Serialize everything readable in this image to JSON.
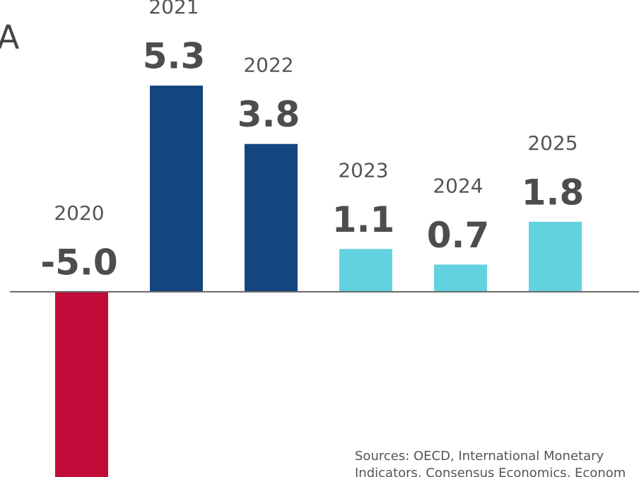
{
  "chart_data": {
    "type": "bar",
    "title": "A",
    "categories": [
      "2020",
      "2021",
      "2022",
      "2023",
      "2024",
      "2025"
    ],
    "values": [
      -5.0,
      5.3,
      3.8,
      1.1,
      0.7,
      1.8
    ],
    "value_labels": [
      "-5.0",
      "5.3",
      "3.8",
      "1.1",
      "0.7",
      "1.8"
    ],
    "colors": [
      "#c20c3a",
      "#14457e",
      "#14457e",
      "#63d2e0",
      "#63d2e0",
      "#63d2e0"
    ],
    "ylim": [
      -4.76,
      7.5
    ],
    "source_lines": [
      "Sources: OECD, International Monetary",
      "Indicators, Consensus Economics, Econom"
    ]
  }
}
